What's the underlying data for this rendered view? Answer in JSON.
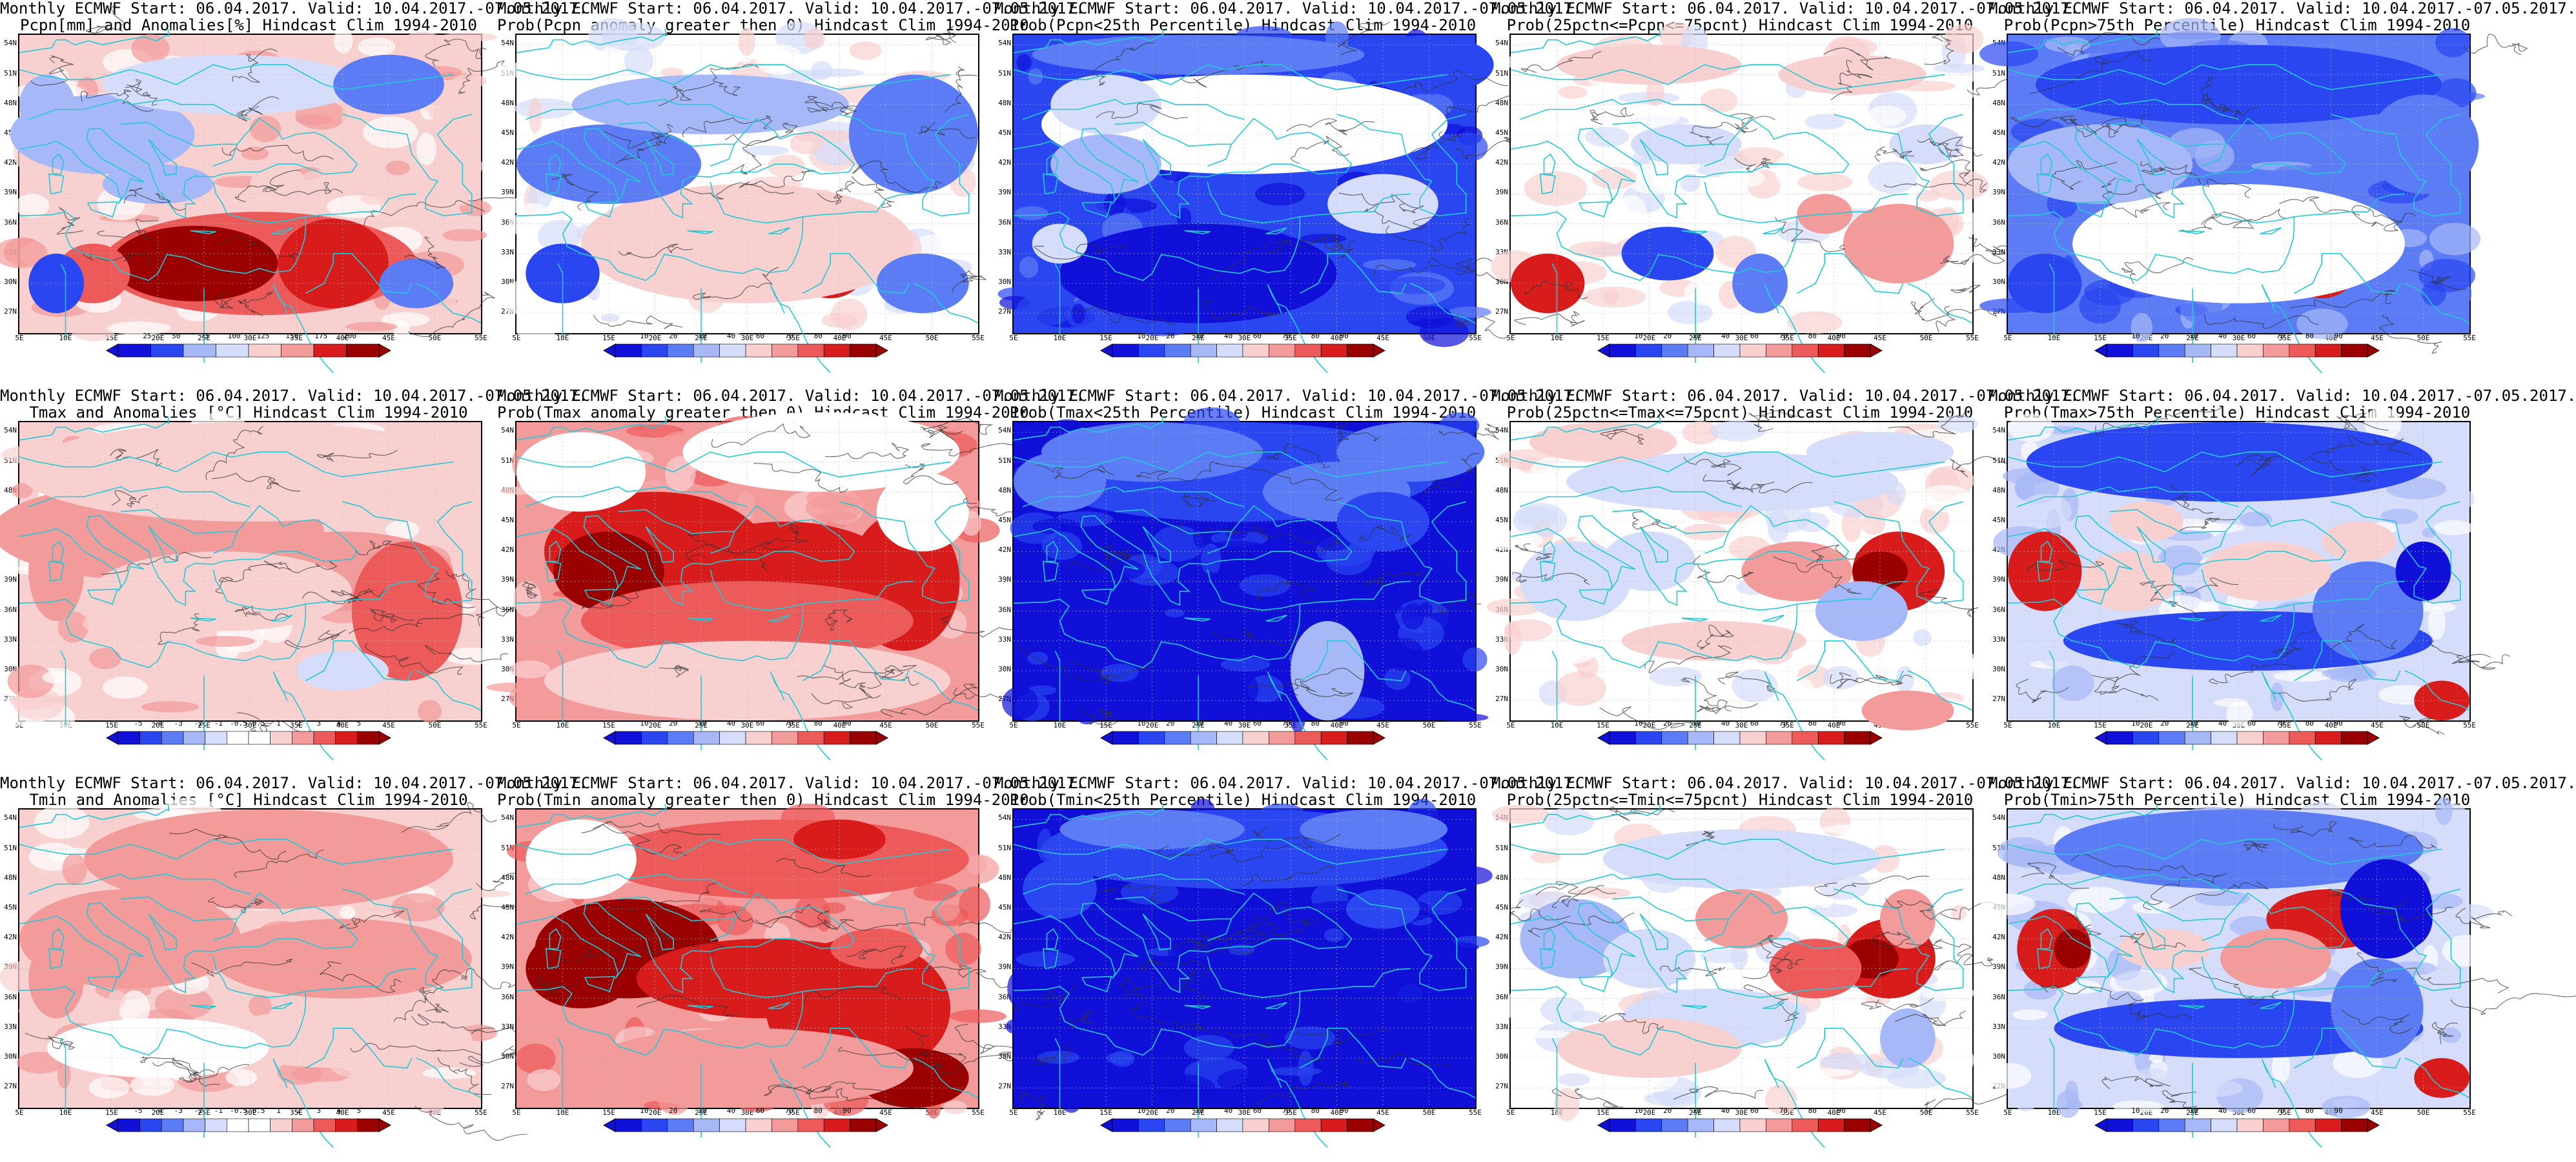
{
  "map_extent": {
    "lon_min": 5,
    "lon_max": 55,
    "lat_min": 25,
    "lat_max": 55
  },
  "lat_labels": [
    "54N",
    "51N",
    "48N",
    "45N",
    "42N",
    "39N",
    "36N",
    "33N",
    "30N",
    "27N"
  ],
  "lon_labels": [
    "5E",
    "10E",
    "15E",
    "20E",
    "25E",
    "30E",
    "35E",
    "40E",
    "45E",
    "50E",
    "55E"
  ],
  "colors": {
    "coast": "#22c9d6",
    "contour": "#333333",
    "scale_blue_to_red": [
      "#1010d8",
      "#2a46f0",
      "#5c7cf5",
      "#a6b8f7",
      "#d6ddfa",
      "#ffffff",
      "#f9d0d0",
      "#f39a9a",
      "#ec5a5a",
      "#d81c1c",
      "#9a0000"
    ]
  },
  "panels": [
    {
      "line1": "Monthly ECMWF Start: 06.04.2017. Valid: 10.04.2017.-07.05.2017.",
      "line2": "Pcpn[mm] and Anomalies[%] Hindcast Clim 1994-2010",
      "field": "pcpn_anom",
      "scale": {
        "stops": 8,
        "ticks": [
          "25",
          "50",
          "75",
          "100",
          "125",
          "150",
          "175",
          "200"
        ]
      }
    },
    {
      "line1": "Monthly ECMWF Start: 06.04.2017. Valid: 10.04.2017.-07.05.2017.",
      "line2": "Prob(Pcpn anomaly greater then 0) Hindcast Clim 1994-2010",
      "field": "pcpn_prob_pos",
      "scale": {
        "stops": 10,
        "ticks": [
          "10",
          "20",
          "30",
          "40",
          "60",
          "70",
          "80",
          "90"
        ]
      }
    },
    {
      "line1": "Monthly ECMWF Start: 06.04.2017. Valid: 10.04.2017.-07.05.2017.",
      "line2": "Prob(Pcpn<25th Percentile) Hindcast Clim 1994-2010",
      "field": "pcpn_low",
      "scale": {
        "stops": 10,
        "ticks": [
          "10",
          "20",
          "30",
          "40",
          "60",
          "70",
          "80",
          "90"
        ]
      }
    },
    {
      "line1": "Monthly ECMWF Start: 06.04.2017. Valid: 10.04.2017.-07.05.2017.",
      "line2": "Prob(25pctn<=Pcpn<=75pcnt) Hindcast Clim 1994-2010",
      "field": "pcpn_mid",
      "scale": {
        "stops": 10,
        "ticks": [
          "10",
          "20",
          "30",
          "40",
          "60",
          "70",
          "80",
          "90"
        ]
      }
    },
    {
      "line1": "Monthly ECMWF Start: 06.04.2017. Valid: 10.04.2017.-07.05.2017.",
      "line2": "Prob(Pcpn>75th Percentile) Hindcast Clim 1994-2010",
      "field": "pcpn_high",
      "scale": {
        "stops": 10,
        "ticks": [
          "10",
          "20",
          "30",
          "40",
          "60",
          "70",
          "80",
          "90"
        ]
      }
    },
    {
      "line1": "Monthly ECMWF Start: 06.04.2017. Valid: 10.04.2017.-07.05.2017.",
      "line2": "Tmax and Anomalies [°C] Hindcast Clim 1994-2010",
      "field": "tmax_anom",
      "scale": {
        "stops": 12,
        "ticks": [
          "-5",
          "-4",
          "-3",
          "-2",
          "-1",
          "-0.5",
          "0.5",
          "1",
          "2",
          "3",
          "4",
          "5"
        ]
      }
    },
    {
      "line1": "Monthly ECMWF Start: 06.04.2017. Valid: 10.04.2017.-07.05.2017.",
      "line2": "Prob(Tmax anomaly greater then 0) Hindcast Clim 1994-2010",
      "field": "tmax_prob_pos",
      "scale": {
        "stops": 10,
        "ticks": [
          "10",
          "20",
          "30",
          "40",
          "60",
          "70",
          "80",
          "90"
        ]
      }
    },
    {
      "line1": "Monthly ECMWF Start: 06.04.2017. Valid: 10.04.2017.-07.05.2017.",
      "line2": "Prob(Tmax<25th Percentile) Hindcast Clim 1994-2010",
      "field": "tmax_low",
      "scale": {
        "stops": 10,
        "ticks": [
          "10",
          "20",
          "30",
          "40",
          "60",
          "70",
          "80",
          "90"
        ]
      }
    },
    {
      "line1": "Monthly ECMWF Start: 06.04.2017. Valid: 10.04.2017.-07.05.2017.",
      "line2": "Prob(25pctn<=Tmax<=75pcnt) Hindcast Clim 1994-2010",
      "field": "tmax_mid",
      "scale": {
        "stops": 10,
        "ticks": [
          "10",
          "20",
          "30",
          "40",
          "60",
          "70",
          "80",
          "90"
        ]
      }
    },
    {
      "line1": "Monthly ECMWF Start: 06.04.2017. Valid: 10.04.2017.-07.05.2017.",
      "line2": "Prob(Tmax>75th Percentile) Hindcast Clim 1994-2010",
      "field": "tmax_high",
      "scale": {
        "stops": 10,
        "ticks": [
          "10",
          "20",
          "30",
          "40",
          "60",
          "70",
          "80",
          "90"
        ]
      }
    },
    {
      "line1": "Monthly ECMWF Start: 06.04.2017. Valid: 10.04.2017.-07.05.2017.",
      "line2": "Tmin and Anomalies [°C] Hindcast Clim 1994-2010",
      "field": "tmin_anom",
      "scale": {
        "stops": 12,
        "ticks": [
          "-5",
          "-4",
          "-3",
          "-2",
          "-1",
          "-0.5",
          "0.5",
          "1",
          "2",
          "3",
          "4",
          "5"
        ]
      }
    },
    {
      "line1": "Monthly ECMWF Start: 06.04.2017. Valid: 10.04.2017.-07.05.2017.",
      "line2": "Prob(Tmin anomaly greater then 0) Hindcast Clim 1994-2010",
      "field": "tmin_prob_pos",
      "scale": {
        "stops": 10,
        "ticks": [
          "10",
          "20",
          "30",
          "40",
          "60",
          "70",
          "80",
          "90"
        ]
      }
    },
    {
      "line1": "Monthly ECMWF Start: 06.04.2017. Valid: 10.04.2017.-07.05.2017.",
      "line2": "Prob(Tmin<25th Percentile) Hindcast Clim 1994-2010",
      "field": "tmin_low",
      "scale": {
        "stops": 10,
        "ticks": [
          "10",
          "20",
          "30",
          "40",
          "60",
          "70",
          "80",
          "90"
        ]
      }
    },
    {
      "line1": "Monthly ECMWF Start: 06.04.2017. Valid: 10.04.2017.-07.05.2017.",
      "line2": "Prob(25pctn<=Tmin<=75pcnt) Hindcast Clim 1994-2010",
      "field": "tmin_mid",
      "scale": {
        "stops": 10,
        "ticks": [
          "10",
          "20",
          "30",
          "40",
          "60",
          "70",
          "80",
          "90"
        ]
      }
    },
    {
      "line1": "Monthly ECMWF Start: 06.04.2017. Valid: 10.04.2017.-07.05.2017.",
      "line2": "Prob(Tmin>75th Percentile) Hindcast Clim 1994-2010",
      "field": "tmin_high",
      "scale": {
        "stops": 10,
        "ticks": [
          "10",
          "20",
          "30",
          "40",
          "60",
          "70",
          "80",
          "90"
        ]
      }
    }
  ]
}
